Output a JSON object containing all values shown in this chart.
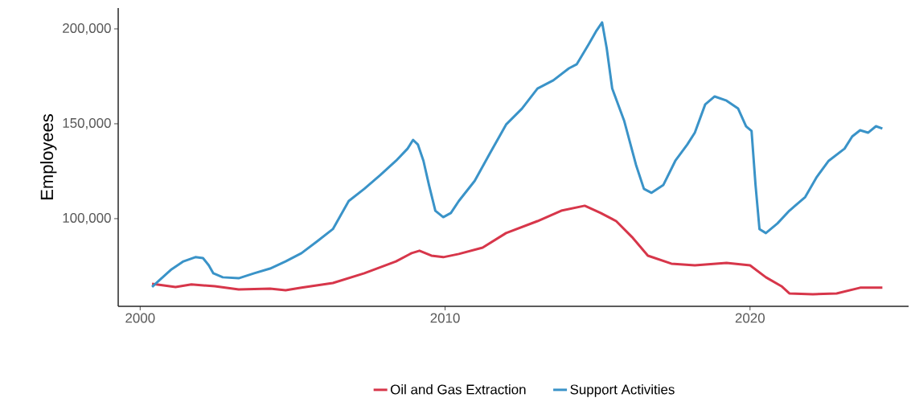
{
  "chart_data": {
    "type": "line",
    "ylabel": "Employees",
    "xlim": [
      1999.28,
      2025.2
    ],
    "ylim": [
      53800,
      211000
    ],
    "xticks": [
      {
        "value": 2000,
        "label": "2000"
      },
      {
        "value": 2010,
        "label": "2010"
      },
      {
        "value": 2020,
        "label": "2020"
      }
    ],
    "yticks": [
      {
        "value": 100000,
        "label": "100,000"
      },
      {
        "value": 150000,
        "label": "150,000"
      },
      {
        "value": 200000,
        "label": "200,000"
      }
    ],
    "legend": "bottom",
    "grid": false,
    "marker": "none",
    "line_style": "solid",
    "series": [
      {
        "name": "Oil and Gas Extraction",
        "color": "#d7364a",
        "x": [
          2000.39,
          2001.16,
          2001.68,
          2002.45,
          2003.23,
          2004.26,
          2004.77,
          2005.29,
          2006.32,
          2007.35,
          2008.39,
          2008.9,
          2009.16,
          2009.55,
          2009.94,
          2010.45,
          2011.23,
          2012.0,
          2013.03,
          2013.81,
          2014.58,
          2015.1,
          2015.61,
          2016.13,
          2016.65,
          2017.42,
          2018.19,
          2019.23,
          2020.0,
          2020.52,
          2021.03,
          2021.29,
          2022.06,
          2022.84,
          2023.61,
          2024.34
        ],
        "values": [
          65700,
          64000,
          65300,
          64400,
          62700,
          63100,
          62300,
          63600,
          66100,
          71200,
          77500,
          81800,
          83100,
          80500,
          79700,
          81400,
          84700,
          92400,
          98700,
          104200,
          106800,
          103000,
          98700,
          90300,
          80500,
          76300,
          75400,
          76700,
          75400,
          69100,
          64400,
          60600,
          60200,
          60600,
          63600,
          63600
        ]
      },
      {
        "name": "Support Activities",
        "color": "#3a93c8",
        "x": [
          2000.39,
          2000.65,
          2001.03,
          2001.42,
          2001.81,
          2002.06,
          2002.25,
          2002.4,
          2002.71,
          2003.23,
          2003.74,
          2004.26,
          2004.77,
          2005.29,
          2005.81,
          2006.32,
          2006.84,
          2007.35,
          2007.87,
          2008.39,
          2008.77,
          2008.95,
          2009.11,
          2009.29,
          2009.47,
          2009.68,
          2009.94,
          2010.19,
          2010.45,
          2010.97,
          2011.48,
          2012.0,
          2012.52,
          2013.03,
          2013.55,
          2014.06,
          2014.32,
          2014.71,
          2014.97,
          2015.15,
          2015.3,
          2015.48,
          2015.87,
          2016.26,
          2016.52,
          2016.77,
          2017.16,
          2017.55,
          2017.94,
          2018.19,
          2018.53,
          2018.84,
          2019.23,
          2019.61,
          2019.87,
          2020.05,
          2020.18,
          2020.31,
          2020.52,
          2020.9,
          2021.29,
          2021.81,
          2022.19,
          2022.58,
          2023.1,
          2023.35,
          2023.61,
          2023.87,
          2024.13,
          2024.34
        ],
        "values": [
          64000,
          67800,
          73300,
          77500,
          79700,
          79200,
          75400,
          71200,
          69100,
          68600,
          71200,
          73700,
          77500,
          81800,
          88100,
          94500,
          109300,
          115700,
          122900,
          130500,
          136900,
          141500,
          139000,
          130500,
          117800,
          104200,
          100800,
          103000,
          109300,
          119900,
          134700,
          149600,
          158000,
          168600,
          172900,
          179200,
          181400,
          191900,
          199200,
          203400,
          189800,
          168600,
          151700,
          128400,
          115700,
          113600,
          117800,
          130500,
          139000,
          145300,
          160200,
          164400,
          162200,
          158000,
          148700,
          146200,
          117800,
          94500,
          92400,
          97500,
          104200,
          111400,
          122000,
          130500,
          136900,
          143300,
          146600,
          145300,
          148700,
          147500
        ]
      }
    ]
  }
}
